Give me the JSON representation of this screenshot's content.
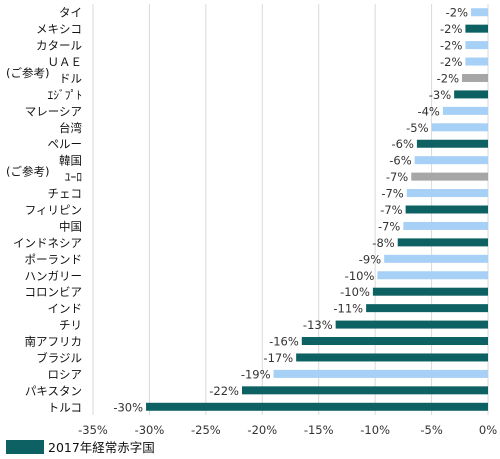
{
  "chart_data": {
    "type": "bar",
    "orientation": "horizontal",
    "categories": [
      "タイ",
      "メキシコ",
      "カタール",
      "ＵＡＥ",
      "ドル",
      "ｴｼﾞﾌﾟﾄ",
      "マレーシア",
      "台湾",
      "ペルー",
      "韓国",
      "ﾕｰﾛ",
      "チェコ",
      "フィリピン",
      "中国",
      "インドネシア",
      "ポーランド",
      "ハンガリー",
      "コロンビア",
      "インド",
      "チリ",
      "南アフリカ",
      "ブラジル",
      "ロシア",
      "パキスタン",
      "トルコ"
    ],
    "values": [
      -1.5,
      -2.0,
      -2.0,
      -2.0,
      -2.3,
      -3.0,
      -4.0,
      -5.0,
      -6.3,
      -6.5,
      -6.8,
      -7.2,
      -7.3,
      -7.5,
      -8.0,
      -9.2,
      -9.8,
      -10.2,
      -10.8,
      -13.5,
      -16.5,
      -17.0,
      -19.0,
      -21.8,
      -30.3
    ],
    "labels": [
      "-2%",
      "-2%",
      "-2%",
      "-2%",
      "-2%",
      "-3%",
      "-4%",
      "-5%",
      "-6%",
      "-6%",
      "-7%",
      "-7%",
      "-7%",
      "-7%",
      "-8%",
      "-9%",
      "-10%",
      "-10%",
      "-11%",
      "-13%",
      "-16%",
      "-17%",
      "-19%",
      "-22%",
      "-30%"
    ],
    "bar_colors": [
      "#a6d0f5",
      "#0e6163",
      "#a6d0f5",
      "#a6d0f5",
      "#a6a6a6",
      "#0e6163",
      "#a6d0f5",
      "#a6d0f5",
      "#0e6163",
      "#a6d0f5",
      "#a6a6a6",
      "#a6d0f5",
      "#0e6163",
      "#a6d0f5",
      "#0e6163",
      "#a6d0f5",
      "#a6d0f5",
      "#0e6163",
      "#0e6163",
      "#0e6163",
      "#0e6163",
      "#0e6163",
      "#a6d0f5",
      "#0e6163",
      "#0e6163"
    ],
    "group_notes": [
      {
        "text": "(ご参考)",
        "category": "ドル"
      },
      {
        "text": "(ご参考)",
        "category": "ﾕｰﾛ"
      }
    ],
    "xlim": [
      -35,
      0
    ],
    "xticks": [
      -35,
      -30,
      -25,
      -20,
      -15,
      -10,
      -5,
      0
    ],
    "xtick_labels": [
      "-35%",
      "-30%",
      "-25%",
      "-20%",
      "-15%",
      "-10%",
      "-5%",
      "0%"
    ],
    "grid": "vertical",
    "legend": [
      {
        "name": "2017年経常赤字国",
        "color": "#0e6163"
      }
    ],
    "legend_position": "bottom-left"
  }
}
